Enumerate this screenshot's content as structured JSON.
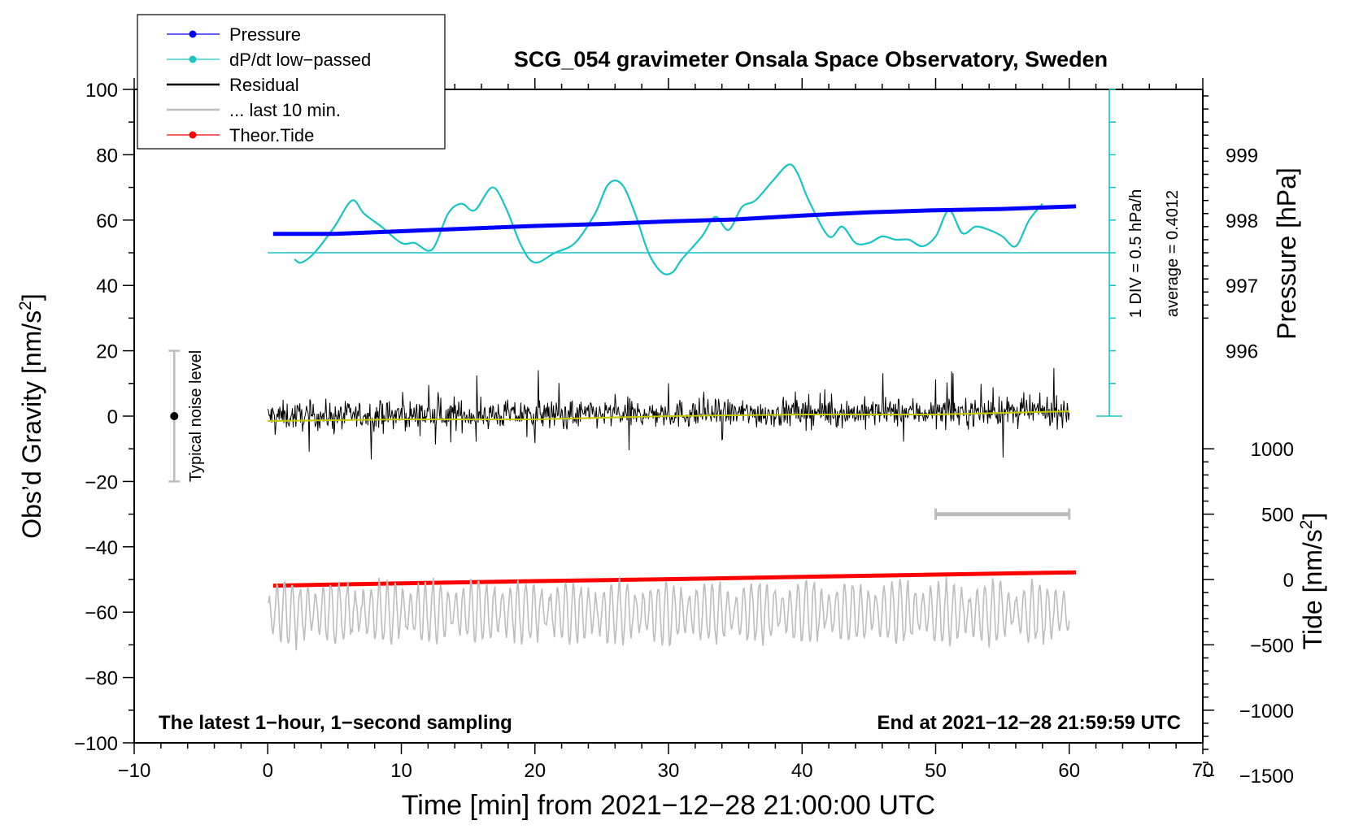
{
  "chart_data": {
    "type": "line",
    "title": "SCG_054 gravimeter Onsala Space Observatory, Sweden",
    "xlabel": "Time [min] from 2021−12−28 21:00:00 UTC",
    "ylabel_left": "Obs’d Gravity [nm/s",
    "ylabel_left_sup": "2",
    "ylabel_left_close": "]",
    "ylabel_right_pressure": "Pressure [hPa]",
    "ylabel_right_tide": "Tide [nm/s",
    "ylabel_right_tide_sup": "2",
    "ylabel_right_tide_close": "]",
    "xlim": [
      -10,
      70
    ],
    "ylim_left": [
      -100,
      100
    ],
    "x_ticks": [
      "−10",
      "0",
      "10",
      "20",
      "30",
      "40",
      "50",
      "60",
      "70"
    ],
    "y_ticks_left": [
      "100",
      "80",
      "60",
      "40",
      "20",
      "0",
      "−20",
      "−40",
      "−60",
      "−80",
      "−100"
    ],
    "pressure_ticks": [
      "999",
      "998",
      "997",
      "996"
    ],
    "pressure_ticks_values": [
      999,
      998,
      997,
      996
    ],
    "pressure_axis": {
      "value_at_gravity_60": 998,
      "hpa_per_20_gravity": 1
    },
    "tide_ticks": [
      "1000",
      "500",
      "0",
      "−500",
      "−1000",
      "−1500"
    ],
    "tide_ticks_values": [
      1000,
      500,
      0,
      -500,
      -1000,
      -1500
    ],
    "tide_axis": {
      "value_at_gravity_neg50": 0,
      "units_per_gravity": 25
    },
    "legend": [
      {
        "label": "Pressure",
        "color": "#0000ff",
        "marker": "dot"
      },
      {
        "label": "dP/dt low−passed",
        "color": "#19c4c4",
        "marker": "dot"
      },
      {
        "label": "Residual",
        "color": "#000000",
        "marker": "none"
      },
      {
        "label": "... last 10 min.",
        "color": "#bdbdbd",
        "marker": "none"
      },
      {
        "label": "Theor.Tide",
        "color": "#ff0000",
        "marker": "dot"
      }
    ],
    "series": [
      {
        "name": "Pressure",
        "color": "#0000ff",
        "axis": "pressure",
        "x": [
          0.4,
          5,
          10,
          15,
          20,
          25,
          30,
          35,
          40,
          45,
          50,
          55,
          60.5
        ],
        "values": [
          997.79,
          997.79,
          997.83,
          997.87,
          997.91,
          997.94,
          997.98,
          998.01,
          998.07,
          998.12,
          998.15,
          998.17,
          998.21
        ]
      },
      {
        "name": "dP/dt low−passed",
        "color": "#19c4c4",
        "axis": "gravity",
        "x": [
          2.0,
          2.5,
          3.5,
          5.0,
          6.3,
          7.2,
          8.5,
          10.0,
          11.0,
          12.3,
          13.5,
          14.5,
          15.5,
          16.8,
          17.8,
          19.0,
          20.0,
          21.5,
          23.0,
          24.5,
          25.5,
          26.5,
          27.5,
          28.5,
          29.5,
          30.3,
          31.0,
          32.5,
          33.5,
          34.5,
          35.5,
          36.5,
          37.8,
          39.0,
          39.7,
          40.5,
          42.0,
          43.0,
          44.0,
          45.0,
          46.0,
          47.0,
          48.0,
          49.0,
          50.0,
          51.0,
          52.0,
          53.0,
          54.0,
          55.0,
          56.0,
          57.0,
          58.0
        ],
        "values": [
          48,
          47,
          50,
          58,
          66,
          62,
          58,
          53,
          53,
          51,
          62,
          65,
          63,
          70,
          64,
          52,
          47,
          50,
          53,
          62,
          71,
          71,
          62,
          50,
          44,
          44,
          48,
          55,
          61,
          57,
          64,
          66,
          72,
          77,
          74,
          66,
          55,
          58,
          53,
          53,
          55,
          54,
          54,
          52,
          55,
          63,
          56,
          58,
          57,
          55,
          52,
          60,
          65
        ]
      },
      {
        "name": "dP/dt reference line",
        "color": "#19c4c4",
        "axis": "gravity",
        "x": [
          0,
          63
        ],
        "values": [
          50,
          50
        ]
      },
      {
        "name": "Residual",
        "color": "#000000",
        "axis": "gravity",
        "x_range": [
          0,
          60
        ],
        "baseline": 0,
        "amplitude_range": [
          -22,
          19
        ]
      },
      {
        "name": "Residual smoothed",
        "color": "#c8c800",
        "axis": "gravity",
        "x": [
          0,
          10,
          20,
          30,
          40,
          50,
          60
        ],
        "values": [
          -1.5,
          -1,
          -1,
          0,
          0.5,
          0.5,
          1.5
        ]
      },
      {
        "name": "Theor.Tide",
        "color": "#ff0000",
        "axis": "gravity",
        "x": [
          0.4,
          10,
          20,
          30,
          40,
          50,
          60.5
        ],
        "values": [
          -51.9,
          -51.2,
          -50.5,
          -49.9,
          -49.2,
          -48.5,
          -47.8
        ]
      },
      {
        "name": "... last 10 min.",
        "color": "#bdbdbd",
        "axis": "gravity",
        "x_range": [
          0,
          60
        ],
        "baseline": -60,
        "amplitude_range": [
          -76,
          -44
        ]
      }
    ],
    "noise_bar": {
      "label": "Typical noise level",
      "x": -7,
      "center": 0,
      "low": -20,
      "high": 20
    },
    "pressure_scale_bar": {
      "x": 63,
      "bottom": 0,
      "top": 100,
      "divisions": 10
    },
    "scale_text_1": "1 DIV = 0.5 hPa/h",
    "scale_text_2": "average = 0.4012",
    "last10_bar": {
      "x_start": 50,
      "x_end": 60,
      "tide_value": 500
    },
    "note_left": "The latest 1−hour, 1−second sampling",
    "note_right": "End at 2021−12−28 21:59:59 UTC"
  }
}
